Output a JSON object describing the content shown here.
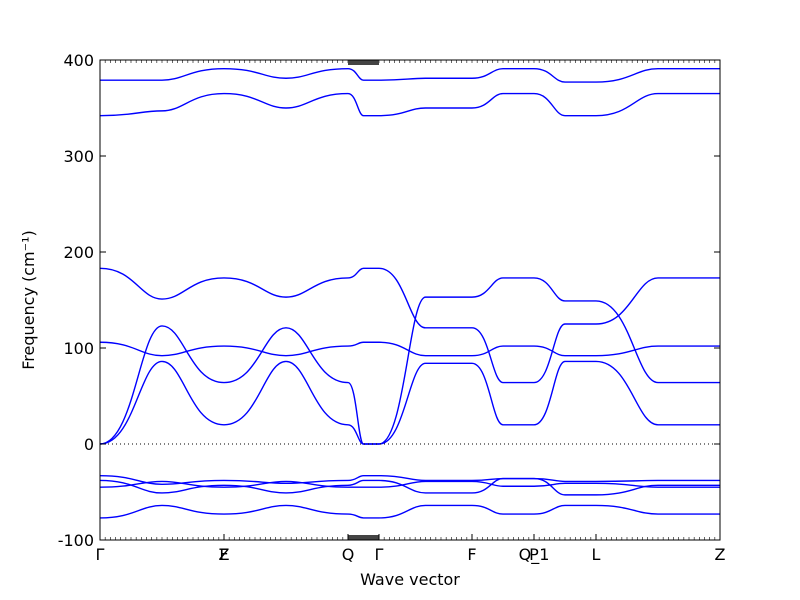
{
  "chart_data": {
    "type": "line",
    "xlabel": "Wave vector",
    "ylabel": "Frequency (cm⁻¹)",
    "ylim": [
      -100,
      400
    ],
    "yticks": [
      -100,
      0,
      100,
      200,
      300,
      400
    ],
    "grid": false,
    "legend": "none",
    "series_color": "#0000ff",
    "zero_line": {
      "y": 0,
      "style": "dotted"
    },
    "q_points": [
      {
        "label": "Γ",
        "x": 0.0
      },
      {
        "label": "F",
        "x": 0.2
      },
      {
        "label": "Z",
        "x": 0.2
      },
      {
        "label": "Q",
        "x": 0.4
      },
      {
        "label": "Γ",
        "x": 0.45
      },
      {
        "label": "F",
        "x": 0.6
      },
      {
        "label": "P",
        "x": 0.7
      },
      {
        "label": "Q_1",
        "x": 0.7
      },
      {
        "label": "L",
        "x": 0.8
      },
      {
        "label": "Z",
        "x": 1.0
      }
    ],
    "segments": [
      {
        "from": "Γ",
        "to": "F",
        "bands": [
          [
            0,
            86,
            20
          ],
          [
            0,
            123,
            64
          ],
          [
            106,
            92,
            102
          ],
          [
            183,
            151,
            173
          ],
          [
            -33,
            -42,
            -38
          ],
          [
            -38,
            -51,
            -43
          ],
          [
            -45,
            -39,
            -45
          ],
          [
            -77,
            -64,
            -73
          ],
          [
            342,
            347,
            365
          ],
          [
            379,
            379,
            391
          ]
        ]
      },
      {
        "from": "Z",
        "to": "Q",
        "bands": [
          [
            20,
            86,
            20
          ],
          [
            64,
            121,
            64
          ],
          [
            102,
            92,
            102
          ],
          [
            173,
            153,
            173
          ],
          [
            -38,
            -41,
            -38
          ],
          [
            -43,
            -51,
            -43
          ],
          [
            -45,
            -39,
            -45
          ],
          [
            -73,
            -64,
            -73
          ],
          [
            365,
            350,
            365
          ],
          [
            391,
            381,
            391
          ]
        ]
      },
      {
        "from": "Q",
        "to": "Γ",
        "bands": [
          [
            20,
            0,
            0
          ],
          [
            64,
            0,
            0
          ],
          [
            102,
            106,
            106
          ],
          [
            173,
            183,
            183
          ],
          [
            -38,
            -33,
            -33
          ],
          [
            -43,
            -38,
            -38
          ],
          [
            -45,
            -45,
            -45
          ],
          [
            -73,
            -77,
            -77
          ],
          [
            365,
            342,
            342
          ],
          [
            391,
            379,
            379
          ]
        ]
      },
      {
        "from": "Γ",
        "to": "F",
        "bands": [
          [
            0,
            84,
            84
          ],
          [
            0,
            153,
            153
          ],
          [
            106,
            92,
            92
          ],
          [
            183,
            121,
            121
          ],
          [
            -33,
            -38,
            -38
          ],
          [
            -38,
            -51,
            -51
          ],
          [
            -45,
            -39,
            -39
          ],
          [
            -77,
            -64,
            -64
          ],
          [
            342,
            350,
            350
          ],
          [
            379,
            381,
            381
          ]
        ]
      },
      {
        "from": "F",
        "to": "P",
        "bands": [
          [
            84,
            20,
            20
          ],
          [
            153,
            173,
            173
          ],
          [
            92,
            102,
            102
          ],
          [
            121,
            64,
            64
          ],
          [
            -38,
            -36,
            -36
          ],
          [
            -51,
            -36,
            -36
          ],
          [
            -39,
            -44,
            -44
          ],
          [
            -64,
            -73,
            -73
          ],
          [
            350,
            365,
            365
          ],
          [
            381,
            391,
            391
          ]
        ]
      },
      {
        "from": "Q_1",
        "to": "L",
        "bands": [
          [
            20,
            86,
            86
          ],
          [
            173,
            149,
            149
          ],
          [
            102,
            92,
            92
          ],
          [
            64,
            125,
            125
          ],
          [
            -36,
            -39,
            -39
          ],
          [
            -36,
            -53,
            -53
          ],
          [
            -44,
            -41,
            -41
          ],
          [
            -73,
            -64,
            -64
          ],
          [
            365,
            342,
            342
          ],
          [
            391,
            377,
            377
          ]
        ]
      },
      {
        "from": "L",
        "to": "Z",
        "bands": [
          [
            86,
            20,
            20
          ],
          [
            149,
            64,
            64
          ],
          [
            92,
            102,
            102
          ],
          [
            125,
            173,
            173
          ],
          [
            -39,
            -38,
            -38
          ],
          [
            -53,
            -43,
            -43
          ],
          [
            -41,
            -45,
            -45
          ],
          [
            -64,
            -73,
            -73
          ],
          [
            342,
            365,
            365
          ],
          [
            377,
            391,
            391
          ]
        ]
      }
    ]
  }
}
